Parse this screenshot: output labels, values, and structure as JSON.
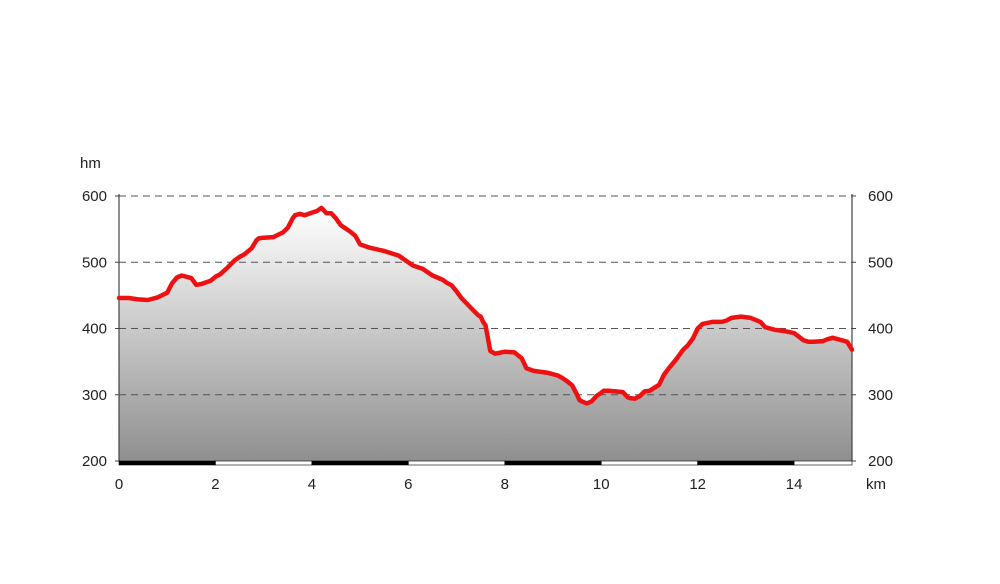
{
  "chart_data": {
    "type": "area",
    "title": "",
    "xlabel": "km",
    "ylabel": "hm",
    "xlim": [
      0,
      15.2
    ],
    "ylim": [
      200,
      600
    ],
    "x_ticks": [
      0,
      2,
      4,
      6,
      8,
      10,
      12,
      14
    ],
    "y_ticks": [
      200,
      300,
      400,
      500,
      600
    ],
    "grid": "horizontal dashed",
    "right_axis_ticks": [
      200,
      300,
      400,
      500,
      600
    ],
    "line_color": "#ee1111",
    "fill_gradient": [
      "#ffffff",
      "#8f8f8f"
    ],
    "series": [
      {
        "x": [
          0,
          0.2,
          0.4,
          0.6,
          0.8,
          1.0,
          1.1,
          1.2,
          1.3,
          1.5,
          1.6,
          1.7,
          1.9,
          2.0,
          2.1,
          2.25,
          2.4,
          2.5,
          2.6,
          2.75,
          2.85,
          2.9,
          3.0,
          3.2,
          3.4,
          3.5,
          3.6,
          3.65,
          3.75,
          3.85,
          4.0,
          4.1,
          4.2,
          4.3,
          4.4,
          4.5,
          4.6,
          4.7,
          4.8,
          4.9,
          5.0,
          5.2,
          5.5,
          5.8,
          6.0,
          6.1,
          6.3,
          6.5,
          6.7,
          6.8,
          6.9,
          7.0,
          7.1,
          7.3,
          7.45,
          7.5,
          7.55,
          7.6,
          7.7,
          7.8,
          8.0,
          8.2,
          8.35,
          8.45,
          8.6,
          8.9,
          9.1,
          9.2,
          9.3,
          9.4,
          9.5,
          9.55,
          9.6,
          9.7,
          9.8,
          9.9,
          10.0,
          10.05,
          10.15,
          10.3,
          10.45,
          10.55,
          10.6,
          10.7,
          10.8,
          10.9,
          11.0,
          11.2,
          11.3,
          11.4,
          11.55,
          11.7,
          11.8,
          11.9,
          12.0,
          12.1,
          12.3,
          12.5,
          12.6,
          12.7,
          12.9,
          13.1,
          13.3,
          13.4,
          13.6,
          13.8,
          14.0,
          14.2,
          14.3,
          14.4,
          14.6,
          14.7,
          14.8,
          14.9,
          15.0,
          15.1,
          15.2
        ],
        "y": [
          446,
          446,
          444,
          443,
          447,
          454,
          468,
          477,
          480,
          476,
          466,
          467,
          472,
          478,
          482,
          492,
          503,
          508,
          512,
          521,
          533,
          536,
          537,
          538,
          545,
          552,
          566,
          571,
          573,
          571,
          575,
          577,
          582,
          574,
          574,
          566,
          556,
          551,
          546,
          540,
          527,
          522,
          517,
          510,
          500,
          495,
          490,
          480,
          474,
          469,
          465,
          456,
          446,
          431,
          420,
          418,
          410,
          405,
          366,
          362,
          365,
          364,
          355,
          340,
          336,
          333,
          329,
          325,
          320,
          314,
          300,
          292,
          290,
          287,
          290,
          298,
          303,
          306,
          306,
          305,
          304,
          296,
          295,
          294,
          298,
          305,
          306,
          315,
          330,
          340,
          353,
          368,
          375,
          385,
          400,
          407,
          410,
          410,
          412,
          416,
          418,
          416,
          410,
          402,
          398,
          396,
          393,
          382,
          380,
          380,
          381,
          384,
          386,
          384,
          382,
          380,
          368
        ]
      }
    ]
  }
}
